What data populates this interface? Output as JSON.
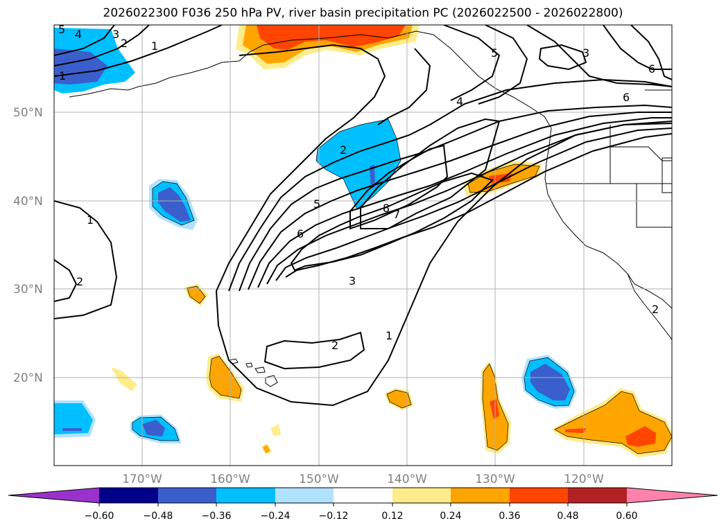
{
  "title": "2026022300 F036 250 hPa PV, river basin precipitation PC (2026022500 - 2026022800)",
  "latitude_labels": [
    "50°N",
    "40°N",
    "30°N",
    "20°N"
  ],
  "longitude_labels": [
    "170°W",
    "160°W",
    "150°W",
    "140°W",
    "130°W",
    "120°W"
  ],
  "colorbar": {
    "tick_labels": [
      "−0.60",
      "−0.48",
      "−0.36",
      "−0.24",
      "−0.12",
      "0.12",
      "0.24",
      "0.36",
      "0.48",
      "0.60"
    ],
    "colors": [
      "#9932CC",
      "#00008B",
      "#3A5FCD",
      "#00BFFF",
      "#B0E2FF",
      "#FFFFFF",
      "#FFEC8B",
      "#FFA500",
      "#FF4500",
      "#B22222",
      "#FF82AB"
    ]
  },
  "contour_labels": [
    "5",
    "4",
    "3",
    "2",
    "1",
    "5",
    "3",
    "6",
    "1",
    "4",
    "6",
    "2",
    "5",
    "6",
    "8",
    "7",
    "3",
    "1",
    "2",
    "2",
    "1",
    "2"
  ],
  "chart_data": {
    "type": "map",
    "lat_range": [
      "10°N",
      "60°N"
    ],
    "lon_range": [
      "180°W",
      "110°W"
    ],
    "gridlines": true,
    "pv_contours": "black lines",
    "shading": "river basin precipitation PC"
  }
}
